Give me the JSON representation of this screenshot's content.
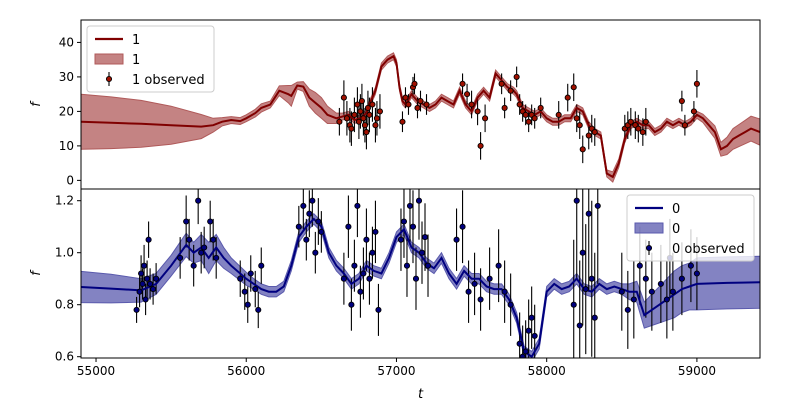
{
  "chart_data": [
    {
      "type": "line",
      "panel": "top",
      "xlabel": "",
      "ylabel": "f",
      "xlim": [
        54900,
        59420
      ],
      "ylim": [
        -2.5,
        46.5
      ],
      "yticks": [
        0,
        10,
        20,
        30,
        40
      ],
      "legend_placement": "upper-left",
      "legend": [
        {
          "label": "1",
          "kind": "line"
        },
        {
          "label": "1",
          "kind": "band"
        },
        {
          "label": "1 observed",
          "kind": "points"
        }
      ],
      "colors": {
        "line": "#800000",
        "band": "#b05a5a",
        "marker": "#a01000"
      },
      "series": [
        {
          "name": "1",
          "x": [
            54900,
            55100,
            55300,
            55500,
            55700,
            55780,
            55840,
            55900,
            55960,
            56000,
            56060,
            56100,
            56160,
            56220,
            56280,
            56300,
            56340,
            56380,
            56420,
            56460,
            56500,
            56540,
            56600,
            56640,
            56680,
            56720,
            56760,
            56800,
            56820,
            56860,
            56900,
            56940,
            56980,
            57000,
            57020,
            57040,
            57060,
            57100,
            57140,
            57180,
            57220,
            57260,
            57300,
            57340,
            57380,
            57420,
            57460,
            57500,
            57540,
            57580,
            57620,
            57660,
            57700,
            57740,
            57780,
            57800,
            57840,
            57880,
            57920,
            57960,
            58000,
            58040,
            58080,
            58120,
            58160,
            58200,
            58240,
            58280,
            58320,
            58360,
            58400,
            58440,
            58480,
            58520,
            58560,
            58600,
            58640,
            58680,
            58720,
            58760,
            58800,
            58840,
            58880,
            58920,
            58960,
            59000,
            59040,
            59080,
            59120,
            59160,
            59200,
            59240,
            59280,
            59320,
            59360,
            59420
          ],
          "y": [
            17,
            16.7,
            16.4,
            16,
            15.6,
            16,
            17,
            17.5,
            17.2,
            18,
            19.5,
            21,
            22,
            26,
            25,
            24.5,
            27.5,
            27.2,
            24,
            22.5,
            21,
            19,
            18,
            18.5,
            19,
            17.5,
            18,
            19.5,
            22,
            26,
            33,
            35,
            36,
            34,
            27,
            23,
            22,
            25,
            23,
            22,
            21,
            22,
            24,
            23,
            22,
            26,
            22,
            20,
            24,
            26,
            24,
            31,
            29,
            27,
            26,
            25,
            21,
            20,
            19,
            20,
            18,
            17,
            17,
            18,
            18,
            21,
            20,
            16,
            14,
            13,
            2,
            1,
            5,
            12,
            16,
            17,
            16,
            16,
            14,
            15,
            17,
            16,
            17,
            16,
            17,
            19,
            18,
            16,
            14,
            9,
            10,
            12,
            13,
            14,
            15,
            14
          ],
          "band_halfwidth": [
            8,
            7.5,
            6.8,
            5.5,
            3.5,
            2,
            1.2,
            1,
            1,
            1,
            1.1,
            1.2,
            1,
            1.4,
            2.5,
            3,
            1,
            1.4,
            2.5,
            3,
            3,
            2.5,
            1.5,
            1,
            1,
            1,
            1,
            1,
            1,
            1,
            1,
            1,
            1,
            1,
            1,
            1,
            1,
            1,
            1,
            1,
            1,
            1,
            1,
            1,
            1,
            1,
            1,
            1,
            1,
            1,
            1,
            1,
            1,
            1,
            1,
            1,
            1,
            1,
            1,
            1,
            1,
            1,
            1,
            1,
            1,
            1,
            1,
            1,
            1,
            1,
            1,
            1.5,
            1.2,
            1,
            1,
            1,
            1,
            1,
            1,
            1,
            1,
            1,
            1,
            1,
            1,
            1,
            1.2,
            1.5,
            1.8,
            2,
            2.5,
            3,
            3.2,
            3.4,
            3.6,
            3.8
          ]
        }
      ],
      "observed": {
        "name": "1 observed",
        "x": [
          56620,
          56650,
          56670,
          56690,
          56700,
          56720,
          56740,
          56750,
          56760,
          56770,
          56780,
          56790,
          56800,
          56810,
          56820,
          56840,
          56860,
          56870,
          56890,
          57040,
          57060,
          57080,
          57110,
          57120,
          57140,
          57160,
          57200,
          57440,
          57470,
          57500,
          57540,
          57560,
          57590,
          57700,
          57720,
          57760,
          57800,
          57820,
          57840,
          57860,
          57880,
          57900,
          57920,
          57960,
          58080,
          58140,
          58180,
          58200,
          58220,
          58240,
          58280,
          58300,
          58320,
          58520,
          58540,
          58560,
          58590,
          58610,
          58640,
          58660,
          58900,
          58920,
          58980,
          59000
        ],
        "y": [
          17,
          24,
          18,
          16,
          15,
          19,
          22,
          17,
          20,
          23,
          18,
          16,
          14,
          21,
          19,
          22,
          16,
          18,
          20,
          17,
          24,
          22,
          27,
          28,
          21,
          23,
          22,
          28,
          25,
          22,
          20,
          10,
          18,
          28,
          21,
          26,
          30,
          22,
          20,
          19,
          17,
          19,
          18,
          21,
          19,
          24,
          27,
          18,
          16,
          9,
          13,
          15,
          14,
          15,
          16,
          17,
          16,
          15,
          14,
          17,
          23,
          16,
          20,
          28
        ],
        "yerr": [
          4,
          5,
          5,
          5,
          5,
          5,
          5,
          5,
          5,
          5,
          5,
          5,
          5,
          5,
          5,
          5,
          5,
          5,
          5,
          3,
          3,
          3,
          3,
          3,
          3,
          3,
          3,
          3,
          3,
          4,
          4,
          4,
          4,
          3,
          3,
          3,
          3,
          3,
          3,
          3,
          3,
          3,
          3,
          3,
          4,
          4,
          4,
          4,
          4,
          4,
          4,
          4,
          4,
          4,
          4,
          4,
          4,
          4,
          4,
          4,
          3,
          3,
          3,
          4
        ]
      }
    },
    {
      "type": "line",
      "panel": "bottom",
      "xlabel": "t",
      "ylabel": "f",
      "xlim": [
        54900,
        59420
      ],
      "ylim": [
        0.595,
        1.245
      ],
      "xticks": [
        55000,
        56000,
        57000,
        58000,
        59000
      ],
      "yticks": [
        0.6,
        0.8,
        1.0,
        1.2
      ],
      "legend_placement": "upper-right",
      "legend": [
        {
          "label": "0",
          "kind": "line"
        },
        {
          "label": "0",
          "kind": "band"
        },
        {
          "label": "0 observed",
          "kind": "points"
        }
      ],
      "colors": {
        "line": "#00007f",
        "band": "#5a5aad",
        "marker": "#00007f"
      },
      "series": [
        {
          "name": "0",
          "x": [
            54900,
            55100,
            55300,
            55400,
            55500,
            55600,
            55650,
            55700,
            55750,
            55800,
            55850,
            55900,
            56000,
            56050,
            56100,
            56150,
            56200,
            56250,
            56300,
            56350,
            56400,
            56450,
            56500,
            56550,
            56600,
            56650,
            56700,
            56750,
            56800,
            56850,
            56900,
            56950,
            57000,
            57050,
            57100,
            57150,
            57200,
            57250,
            57300,
            57350,
            57400,
            57450,
            57500,
            57550,
            57600,
            57650,
            57700,
            57750,
            57800,
            57850,
            57900,
            57950,
            58000,
            58050,
            58100,
            58150,
            58200,
            58250,
            58300,
            58350,
            58400,
            58450,
            58500,
            58550,
            58600,
            58650,
            58700,
            58750,
            58800,
            58850,
            58900,
            58950,
            59000,
            59100,
            59200,
            59300,
            59420
          ],
          "y": [
            0.868,
            0.862,
            0.855,
            0.88,
            0.95,
            1.03,
            1.0,
            1.02,
            0.98,
            1.02,
            0.98,
            0.95,
            0.9,
            0.88,
            0.86,
            0.85,
            0.85,
            0.87,
            0.95,
            1.06,
            1.1,
            1.13,
            1.1,
            1.0,
            0.95,
            0.92,
            0.88,
            0.9,
            0.95,
            0.93,
            0.92,
            0.98,
            1.06,
            1.09,
            1.02,
            1.0,
            0.96,
            0.94,
            0.98,
            0.92,
            0.88,
            0.93,
            0.9,
            0.9,
            0.87,
            0.86,
            0.86,
            0.82,
            0.75,
            0.62,
            0.6,
            0.65,
            0.85,
            0.88,
            0.86,
            0.87,
            0.9,
            0.86,
            0.85,
            0.88,
            0.86,
            0.87,
            0.86,
            0.85,
            0.85,
            0.76,
            0.78,
            0.8,
            0.82,
            0.84,
            0.86,
            0.87,
            0.88,
            0.882,
            0.884,
            0.885,
            0.886
          ],
          "band_halfwidth": [
            0.06,
            0.055,
            0.045,
            0.04,
            0.04,
            0.045,
            0.04,
            0.05,
            0.06,
            0.05,
            0.04,
            0.03,
            0.025,
            0.02,
            0.02,
            0.02,
            0.02,
            0.02,
            0.02,
            0.02,
            0.02,
            0.02,
            0.02,
            0.02,
            0.02,
            0.02,
            0.02,
            0.02,
            0.02,
            0.02,
            0.02,
            0.02,
            0.02,
            0.02,
            0.02,
            0.02,
            0.02,
            0.02,
            0.02,
            0.02,
            0.02,
            0.02,
            0.02,
            0.02,
            0.02,
            0.02,
            0.02,
            0.02,
            0.02,
            0.02,
            0.02,
            0.02,
            0.02,
            0.02,
            0.02,
            0.02,
            0.02,
            0.02,
            0.02,
            0.02,
            0.02,
            0.02,
            0.02,
            0.03,
            0.04,
            0.05,
            0.06,
            0.07,
            0.08,
            0.09,
            0.09,
            0.09,
            0.1,
            0.1,
            0.1,
            0.1,
            0.1
          ]
        }
      ],
      "observed": {
        "name": "0 observed",
        "x": [
          55270,
          55290,
          55300,
          55310,
          55320,
          55330,
          55340,
          55350,
          55360,
          55380,
          55400,
          55560,
          55600,
          55620,
          55650,
          55680,
          55700,
          55720,
          55760,
          55780,
          55800,
          55960,
          55990,
          56010,
          56030,
          56060,
          56080,
          56100,
          56350,
          56380,
          56400,
          56420,
          56440,
          56460,
          56480,
          56500,
          56650,
          56680,
          56700,
          56720,
          56740,
          56760,
          56780,
          56800,
          56820,
          56840,
          56860,
          56880,
          57030,
          57050,
          57070,
          57090,
          57110,
          57130,
          57150,
          57170,
          57190,
          57210,
          57400,
          57440,
          57480,
          57520,
          57560,
          57620,
          57680,
          57720,
          57760,
          57820,
          57840,
          57860,
          57880,
          57900,
          57920,
          58180,
          58200,
          58220,
          58240,
          58260,
          58280,
          58300,
          58320,
          58340,
          58500,
          58540,
          58580,
          58620,
          58660,
          58700,
          58760,
          58800,
          58820,
          58840,
          58900,
          58960,
          59000
        ],
        "y": [
          0.78,
          0.85,
          0.92,
          0.88,
          0.95,
          0.82,
          0.9,
          1.05,
          0.88,
          0.86,
          0.9,
          0.98,
          1.12,
          1.05,
          0.95,
          1.2,
          1.0,
          1.02,
          1.12,
          1.05,
          0.98,
          0.9,
          0.85,
          0.8,
          0.92,
          0.86,
          0.78,
          0.95,
          1.1,
          1.18,
          1.05,
          1.15,
          1.2,
          1.0,
          1.12,
          1.08,
          0.9,
          1.1,
          0.8,
          0.95,
          1.18,
          0.85,
          0.92,
          1.05,
          0.9,
          1.0,
          1.08,
          0.78,
          1.05,
          1.12,
          0.95,
          1.18,
          1.1,
          0.9,
          1.2,
          1.0,
          1.06,
          0.95,
          1.05,
          1.1,
          0.85,
          0.88,
          0.82,
          0.9,
          0.95,
          0.85,
          0.8,
          0.65,
          0.6,
          0.62,
          0.7,
          0.75,
          0.68,
          0.8,
          1.2,
          0.72,
          1.0,
          0.86,
          1.15,
          0.9,
          0.75,
          1.18,
          0.85,
          0.78,
          0.82,
          0.95,
          0.9,
          0.85,
          0.88,
          0.82,
          0.98,
          0.85,
          0.9,
          0.95,
          0.92
        ],
        "yerr": [
          0.05,
          0.06,
          0.07,
          0.06,
          0.08,
          0.06,
          0.07,
          0.07,
          0.06,
          0.06,
          0.06,
          0.08,
          0.1,
          0.08,
          0.08,
          0.09,
          0.08,
          0.08,
          0.08,
          0.08,
          0.08,
          0.07,
          0.07,
          0.07,
          0.07,
          0.07,
          0.07,
          0.07,
          0.08,
          0.09,
          0.08,
          0.09,
          0.1,
          0.08,
          0.09,
          0.08,
          0.1,
          0.12,
          0.1,
          0.1,
          0.12,
          0.1,
          0.1,
          0.12,
          0.1,
          0.1,
          0.12,
          0.1,
          0.12,
          0.14,
          0.12,
          0.15,
          0.14,
          0.12,
          0.15,
          0.12,
          0.13,
          0.12,
          0.12,
          0.14,
          0.12,
          0.12,
          0.12,
          0.12,
          0.14,
          0.12,
          0.12,
          0.12,
          0.12,
          0.12,
          0.12,
          0.12,
          0.12,
          0.25,
          0.3,
          0.25,
          0.28,
          0.25,
          0.3,
          0.3,
          0.25,
          0.3,
          0.15,
          0.15,
          0.15,
          0.15,
          0.15,
          0.15,
          0.15,
          0.15,
          0.15,
          0.15,
          0.14,
          0.14,
          0.14
        ]
      }
    }
  ]
}
